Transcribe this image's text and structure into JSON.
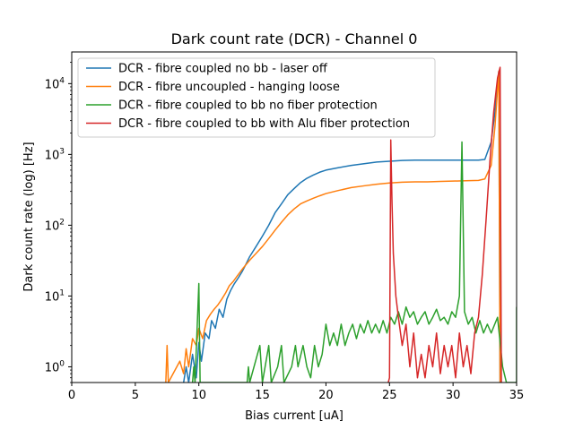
{
  "chart_data": {
    "type": "line",
    "title": "Dark count rate (DCR) - Channel 0",
    "xlabel": "Bias current [uA]",
    "ylabel": "Dark count rate (log) [Hz]",
    "xlim": [
      0,
      35
    ],
    "ylim": [
      0.6,
      28000
    ],
    "yscale": "log",
    "x_ticks": [
      0,
      5,
      10,
      15,
      20,
      25,
      30,
      35
    ],
    "y_ticks": [
      1,
      10,
      100,
      1000,
      10000
    ],
    "y_tick_labels": [
      "10",
      "10",
      "10",
      "10",
      "10"
    ],
    "y_tick_exponents": [
      "0",
      "1",
      "2",
      "3",
      "4"
    ],
    "grid": false,
    "legend_position": "top-left",
    "series": [
      {
        "name": "DCR - fibre coupled no bb - laser off",
        "color": "#1f77b4",
        "points": [
          [
            8.8,
            0.6
          ],
          [
            9.0,
            1.0
          ],
          [
            9.2,
            0.6
          ],
          [
            9.5,
            1.5
          ],
          [
            9.8,
            0.7
          ],
          [
            10.0,
            2.2
          ],
          [
            10.2,
            1.2
          ],
          [
            10.5,
            3.0
          ],
          [
            10.8,
            2.5
          ],
          [
            11.0,
            4.5
          ],
          [
            11.3,
            3.5
          ],
          [
            11.6,
            6.5
          ],
          [
            11.9,
            5.0
          ],
          [
            12.2,
            9.0
          ],
          [
            12.5,
            12.0
          ],
          [
            12.8,
            15.0
          ],
          [
            13.1,
            18.0
          ],
          [
            13.4,
            22.0
          ],
          [
            13.7,
            28.0
          ],
          [
            14.0,
            36.0
          ],
          [
            14.5,
            50.0
          ],
          [
            15.0,
            70.0
          ],
          [
            15.5,
            100.0
          ],
          [
            16.0,
            150.0
          ],
          [
            16.5,
            200.0
          ],
          [
            17.0,
            270.0
          ],
          [
            17.5,
            330.0
          ],
          [
            18.0,
            400.0
          ],
          [
            18.5,
            460.0
          ],
          [
            19.0,
            510.0
          ],
          [
            19.5,
            560.0
          ],
          [
            20.0,
            600.0
          ],
          [
            21.0,
            650.0
          ],
          [
            22.0,
            700.0
          ],
          [
            23.0,
            740.0
          ],
          [
            24.0,
            780.0
          ],
          [
            25.0,
            800.0
          ],
          [
            26.0,
            820.0
          ],
          [
            27.0,
            830.0
          ],
          [
            28.0,
            830.0
          ],
          [
            29.0,
            830.0
          ],
          [
            30.0,
            830.0
          ],
          [
            31.0,
            830.0
          ],
          [
            32.0,
            830.0
          ],
          [
            32.5,
            850.0
          ],
          [
            33.0,
            1500.0
          ],
          [
            33.3,
            4000.0
          ],
          [
            33.6,
            15000.0
          ],
          [
            33.7,
            0.6
          ]
        ]
      },
      {
        "name": "DCR - fibre uncoupled - hanging loose",
        "color": "#ff7f0e",
        "points": [
          [
            7.4,
            0.6
          ],
          [
            7.5,
            2.0
          ],
          [
            7.6,
            0.6
          ],
          [
            8.5,
            1.2
          ],
          [
            8.8,
            0.8
          ],
          [
            9.0,
            1.8
          ],
          [
            9.2,
            1.0
          ],
          [
            9.5,
            2.5
          ],
          [
            9.8,
            2.0
          ],
          [
            10.0,
            3.5
          ],
          [
            10.3,
            2.5
          ],
          [
            10.6,
            4.5
          ],
          [
            10.9,
            5.5
          ],
          [
            11.2,
            6.5
          ],
          [
            11.5,
            7.5
          ],
          [
            11.8,
            9.0
          ],
          [
            12.1,
            11.0
          ],
          [
            12.4,
            14.0
          ],
          [
            12.7,
            16.0
          ],
          [
            13.0,
            19.0
          ],
          [
            13.5,
            25.0
          ],
          [
            14.0,
            32.0
          ],
          [
            14.5,
            40.0
          ],
          [
            15.0,
            50.0
          ],
          [
            15.5,
            65.0
          ],
          [
            16.0,
            85.0
          ],
          [
            16.5,
            110.0
          ],
          [
            17.0,
            140.0
          ],
          [
            17.5,
            170.0
          ],
          [
            18.0,
            200.0
          ],
          [
            18.5,
            220.0
          ],
          [
            19.0,
            240.0
          ],
          [
            19.5,
            260.0
          ],
          [
            20.0,
            280.0
          ],
          [
            21.0,
            310.0
          ],
          [
            22.0,
            340.0
          ],
          [
            23.0,
            360.0
          ],
          [
            24.0,
            380.0
          ],
          [
            25.0,
            395.0
          ],
          [
            26.0,
            405.0
          ],
          [
            27.0,
            410.0
          ],
          [
            28.0,
            410.0
          ],
          [
            29.0,
            415.0
          ],
          [
            30.0,
            420.0
          ],
          [
            31.0,
            425.0
          ],
          [
            32.0,
            430.0
          ],
          [
            32.5,
            450.0
          ],
          [
            33.0,
            700.0
          ],
          [
            33.3,
            2500.0
          ],
          [
            33.6,
            15000.0
          ],
          [
            33.7,
            0.6
          ]
        ]
      },
      {
        "name": "DCR - fibre coupled to bb no fiber protection",
        "color": "#2ca02c",
        "points": [
          [
            9.5,
            0.6
          ],
          [
            9.6,
            1.0
          ],
          [
            9.7,
            0.6
          ],
          [
            10.0,
            15.0
          ],
          [
            10.1,
            0.6
          ],
          [
            13.8,
            0.6
          ],
          [
            13.9,
            1.0
          ],
          [
            14.0,
            0.6
          ],
          [
            14.8,
            2.0
          ],
          [
            15.0,
            0.6
          ],
          [
            15.5,
            2.0
          ],
          [
            15.7,
            0.6
          ],
          [
            16.2,
            1.0
          ],
          [
            16.5,
            2.0
          ],
          [
            16.7,
            0.6
          ],
          [
            17.3,
            1.0
          ],
          [
            17.6,
            2.0
          ],
          [
            17.8,
            1.0
          ],
          [
            18.2,
            2.0
          ],
          [
            18.5,
            1.0
          ],
          [
            18.8,
            0.7
          ],
          [
            19.1,
            2.0
          ],
          [
            19.4,
            1.0
          ],
          [
            19.7,
            1.5
          ],
          [
            20.0,
            4.0
          ],
          [
            20.3,
            2.0
          ],
          [
            20.6,
            3.0
          ],
          [
            20.9,
            2.0
          ],
          [
            21.2,
            4.0
          ],
          [
            21.5,
            2.0
          ],
          [
            21.8,
            3.0
          ],
          [
            22.1,
            4.0
          ],
          [
            22.4,
            2.5
          ],
          [
            22.7,
            4.0
          ],
          [
            23.0,
            3.0
          ],
          [
            23.3,
            4.5
          ],
          [
            23.6,
            3.0
          ],
          [
            23.9,
            4.0
          ],
          [
            24.2,
            3.0
          ],
          [
            24.5,
            4.5
          ],
          [
            24.8,
            3.0
          ],
          [
            25.1,
            5.0
          ],
          [
            25.4,
            4.0
          ],
          [
            25.7,
            6.0
          ],
          [
            26.0,
            4.0
          ],
          [
            26.3,
            7.0
          ],
          [
            26.6,
            5.0
          ],
          [
            26.9,
            6.0
          ],
          [
            27.2,
            4.0
          ],
          [
            27.5,
            5.0
          ],
          [
            27.8,
            6.0
          ],
          [
            28.1,
            4.0
          ],
          [
            28.4,
            5.0
          ],
          [
            28.7,
            6.5
          ],
          [
            29.0,
            4.5
          ],
          [
            29.3,
            5.0
          ],
          [
            29.6,
            4.0
          ],
          [
            29.9,
            6.0
          ],
          [
            30.2,
            5.0
          ],
          [
            30.5,
            10.0
          ],
          [
            30.7,
            1500.0
          ],
          [
            30.9,
            6.0
          ],
          [
            31.2,
            4.0
          ],
          [
            31.5,
            5.0
          ],
          [
            31.8,
            3.0
          ],
          [
            32.1,
            4.5
          ],
          [
            32.4,
            3.0
          ],
          [
            32.7,
            4.0
          ],
          [
            33.0,
            3.0
          ],
          [
            33.5,
            5.0
          ],
          [
            33.9,
            1.0
          ],
          [
            34.2,
            0.6
          ],
          [
            35.0,
            0.6
          ],
          [
            35.0,
            7.0
          ]
        ]
      },
      {
        "name": "DCR - fibre coupled to bb with Alu fiber protection",
        "color": "#d62728",
        "points": [
          [
            24.9,
            0.6
          ],
          [
            25.0,
            0.7
          ],
          [
            25.1,
            1600.0
          ],
          [
            25.2,
            200.0
          ],
          [
            25.3,
            40.0
          ],
          [
            25.5,
            10.0
          ],
          [
            25.7,
            5.0
          ],
          [
            26.0,
            2.0
          ],
          [
            26.3,
            4.0
          ],
          [
            26.6,
            1.0
          ],
          [
            26.9,
            3.0
          ],
          [
            27.2,
            0.7
          ],
          [
            27.5,
            1.5
          ],
          [
            27.8,
            0.7
          ],
          [
            28.1,
            2.0
          ],
          [
            28.4,
            1.0
          ],
          [
            28.7,
            3.0
          ],
          [
            29.0,
            0.8
          ],
          [
            29.3,
            2.0
          ],
          [
            29.6,
            1.0
          ],
          [
            29.9,
            2.0
          ],
          [
            30.2,
            0.7
          ],
          [
            30.5,
            3.0
          ],
          [
            30.8,
            1.0
          ],
          [
            31.1,
            2.0
          ],
          [
            31.4,
            0.8
          ],
          [
            31.7,
            3.0
          ],
          [
            32.0,
            5.0
          ],
          [
            32.3,
            20.0
          ],
          [
            32.6,
            120.0
          ],
          [
            32.9,
            800.0
          ],
          [
            33.2,
            4000.0
          ],
          [
            33.5,
            12000.0
          ],
          [
            33.7,
            17000.0
          ],
          [
            33.8,
            0.6
          ]
        ]
      }
    ]
  }
}
